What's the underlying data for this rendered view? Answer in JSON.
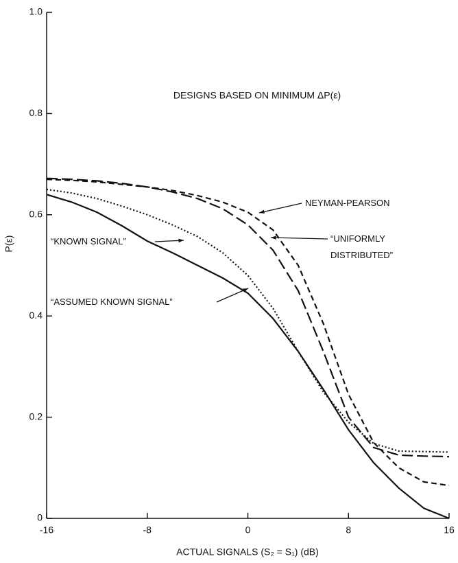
{
  "chart_data": {
    "type": "line",
    "title": "DESIGNS BASED ON MINIMUM ΔP(ε)",
    "x_label": "ACTUAL SIGNALS (S₂ = S₁) (dB)",
    "y_label": "P(ε)",
    "x": [
      -16,
      -14,
      -12,
      -10,
      -8,
      -6,
      -4,
      -2,
      0,
      2,
      4,
      6,
      8,
      10,
      12,
      14,
      16
    ],
    "xlim": [
      -16,
      16
    ],
    "xticks": [
      -16,
      -8,
      0,
      8,
      16
    ],
    "ylim": [
      0,
      1
    ],
    "yticks": [
      0,
      0.2,
      0.4,
      0.6,
      0.8,
      {
        "value": 1,
        "label": "1.0"
      }
    ],
    "series": [
      {
        "name": "NEYMAN-PEARSON",
        "color": "#111111",
        "dash": "8,5",
        "values": [
          0.67,
          0.668,
          0.665,
          0.66,
          0.655,
          0.648,
          0.638,
          0.625,
          0.605,
          0.57,
          0.5,
          0.385,
          0.245,
          0.15,
          0.1,
          0.072,
          0.065
        ]
      },
      {
        "name": "“UNIFORMLY DISTRIBUTED”",
        "color": "#111111",
        "dash": "16,6",
        "values": [
          0.672,
          0.67,
          0.667,
          0.662,
          0.655,
          0.645,
          0.632,
          0.612,
          0.58,
          0.53,
          0.45,
          0.33,
          0.2,
          0.14,
          0.125,
          0.123,
          0.122
        ]
      },
      {
        "name": "“KNOWN SIGNAL”",
        "color": "#111111",
        "dash": "none",
        "values": [
          0.64,
          0.625,
          0.605,
          0.578,
          0.548,
          0.525,
          0.5,
          0.475,
          0.445,
          0.395,
          0.33,
          0.255,
          0.175,
          0.11,
          0.06,
          0.02,
          0.0
        ]
      },
      {
        "name": "“ASSUMED KNOWN SIGNAL”",
        "color": "#111111",
        "dash": "2,3",
        "values": [
          0.65,
          0.643,
          0.632,
          0.617,
          0.6,
          0.58,
          0.557,
          0.525,
          0.48,
          0.415,
          0.33,
          0.25,
          0.19,
          0.148,
          0.133,
          0.132,
          0.131
        ]
      }
    ]
  }
}
